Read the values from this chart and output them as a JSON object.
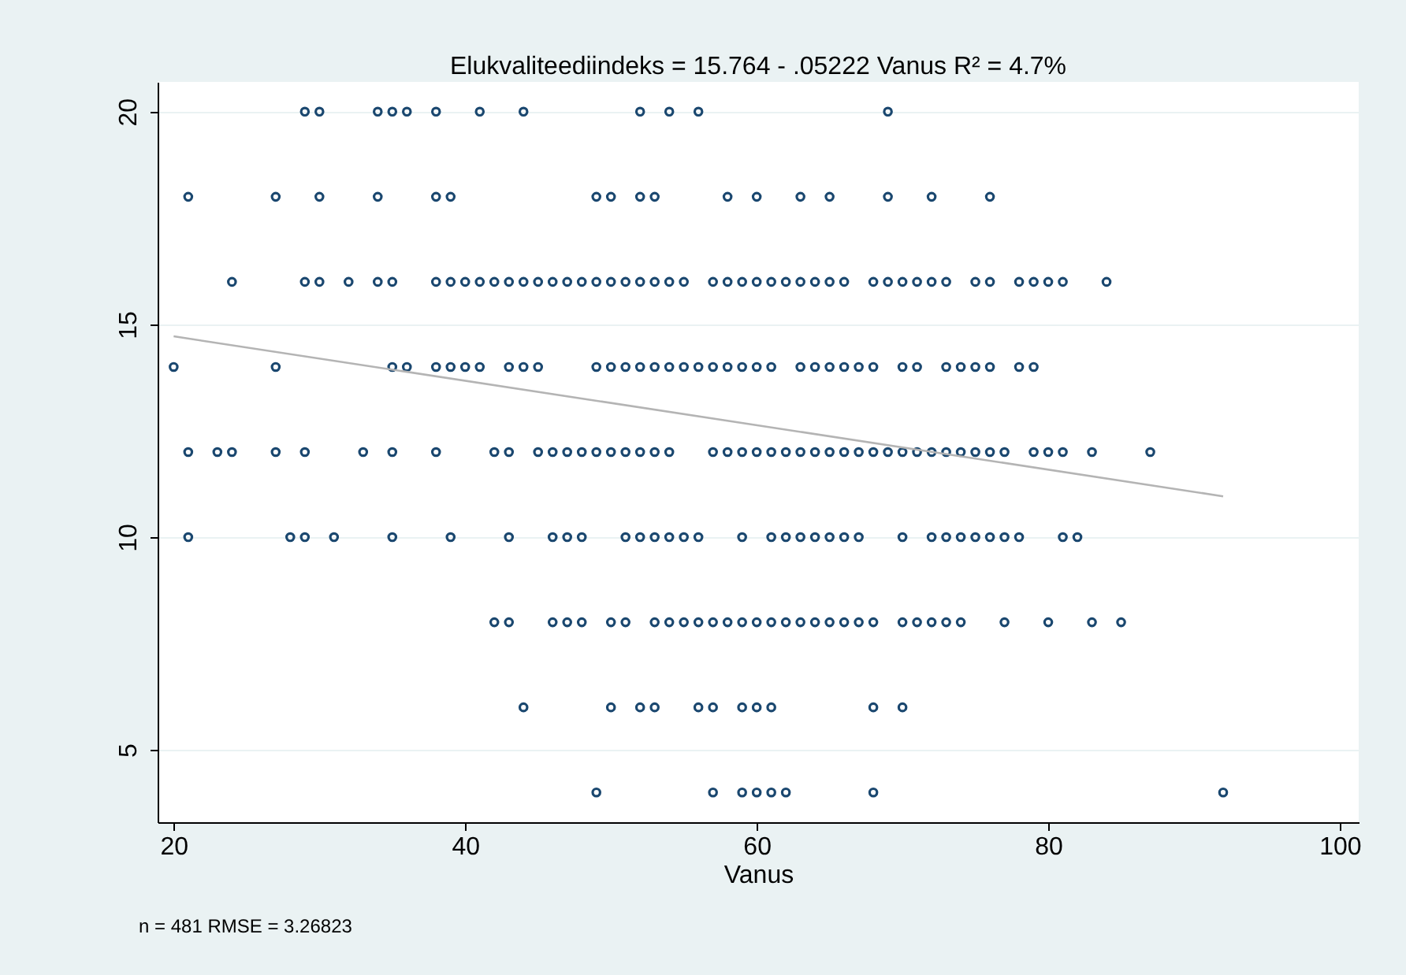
{
  "chart_data": {
    "type": "scatter",
    "title": "Elukvaliteediindeks = 15.764 - .05222 Vanus      R² = 4.7%",
    "xlabel": "Vanus",
    "annotations": [
      "n = 481    RMSE =  3.26823"
    ],
    "xlim": [
      18.9,
      101.3
    ],
    "xticks": [
      20,
      40,
      60,
      80,
      100
    ],
    "ylim": [
      3.3,
      20.7
    ],
    "yticks": [
      5,
      10,
      15,
      20
    ],
    "grid": "y",
    "marker": "circle",
    "series": [
      {
        "color": "#1a476f",
        "x": [
          29,
          30,
          34,
          35,
          36,
          38,
          41,
          44,
          52,
          54,
          56,
          69
        ],
        "values": [
          20,
          20,
          20,
          20,
          20,
          20,
          20,
          20,
          20,
          20,
          20,
          20
        ]
      },
      {
        "color": "#1a476f",
        "x": [
          21,
          27,
          30,
          34,
          38,
          39,
          49,
          50,
          52,
          53,
          58,
          60,
          63,
          65,
          69,
          72,
          76
        ],
        "values": [
          18,
          18,
          18,
          18,
          18,
          18,
          18,
          18,
          18,
          18,
          18,
          18,
          18,
          18,
          18,
          18,
          18
        ]
      },
      {
        "color": "#1a476f",
        "x": [
          24,
          29,
          30,
          32,
          34,
          35,
          38,
          39,
          40,
          41,
          42,
          43,
          44,
          45,
          46,
          47,
          48,
          49,
          50,
          51,
          52,
          53,
          54,
          55,
          57,
          58,
          59,
          60,
          61,
          62,
          63,
          64,
          65,
          66,
          68,
          69,
          70,
          71,
          72,
          73,
          75,
          76,
          78,
          79,
          80,
          81,
          84
        ],
        "values": [
          16,
          16,
          16,
          16,
          16,
          16,
          16,
          16,
          16,
          16,
          16,
          16,
          16,
          16,
          16,
          16,
          16,
          16,
          16,
          16,
          16,
          16,
          16,
          16,
          16,
          16,
          16,
          16,
          16,
          16,
          16,
          16,
          16,
          16,
          16,
          16,
          16,
          16,
          16,
          16,
          16,
          16,
          16,
          16,
          16,
          16,
          16
        ]
      },
      {
        "color": "#1a476f",
        "x": [
          20,
          27,
          35,
          36,
          38,
          39,
          40,
          41,
          43,
          44,
          45,
          49,
          50,
          51,
          52,
          53,
          54,
          55,
          56,
          57,
          58,
          59,
          60,
          61,
          63,
          64,
          65,
          66,
          67,
          68,
          70,
          71,
          73,
          74,
          75,
          76,
          78,
          79
        ],
        "values": [
          14,
          14,
          14,
          14,
          14,
          14,
          14,
          14,
          14,
          14,
          14,
          14,
          14,
          14,
          14,
          14,
          14,
          14,
          14,
          14,
          14,
          14,
          14,
          14,
          14,
          14,
          14,
          14,
          14,
          14,
          14,
          14,
          14,
          14,
          14,
          14,
          14,
          14
        ]
      },
      {
        "color": "#1a476f",
        "x": [
          21,
          23,
          24,
          27,
          29,
          33,
          35,
          38,
          42,
          43,
          45,
          46,
          47,
          48,
          49,
          50,
          51,
          52,
          53,
          54,
          57,
          58,
          59,
          60,
          61,
          62,
          63,
          64,
          65,
          66,
          67,
          68,
          69,
          70,
          71,
          72,
          73,
          74,
          75,
          76,
          77,
          79,
          80,
          81,
          83,
          87
        ],
        "values": [
          12,
          12,
          12,
          12,
          12,
          12,
          12,
          12,
          12,
          12,
          12,
          12,
          12,
          12,
          12,
          12,
          12,
          12,
          12,
          12,
          12,
          12,
          12,
          12,
          12,
          12,
          12,
          12,
          12,
          12,
          12,
          12,
          12,
          12,
          12,
          12,
          12,
          12,
          12,
          12,
          12,
          12,
          12,
          12,
          12,
          12
        ]
      },
      {
        "color": "#1a476f",
        "x": [
          21,
          28,
          29,
          31,
          35,
          39,
          43,
          46,
          47,
          48,
          51,
          52,
          53,
          54,
          55,
          56,
          59,
          61,
          62,
          63,
          64,
          65,
          66,
          67,
          70,
          72,
          73,
          74,
          75,
          76,
          77,
          78,
          81,
          82
        ],
        "values": [
          10,
          10,
          10,
          10,
          10,
          10,
          10,
          10,
          10,
          10,
          10,
          10,
          10,
          10,
          10,
          10,
          10,
          10,
          10,
          10,
          10,
          10,
          10,
          10,
          10,
          10,
          10,
          10,
          10,
          10,
          10,
          10,
          10,
          10
        ]
      },
      {
        "color": "#1a476f",
        "x": [
          42,
          43,
          46,
          47,
          48,
          50,
          51,
          53,
          54,
          55,
          56,
          57,
          58,
          59,
          60,
          61,
          62,
          63,
          64,
          65,
          66,
          67,
          68,
          70,
          71,
          72,
          73,
          74,
          77,
          80,
          83,
          85
        ],
        "values": [
          8,
          8,
          8,
          8,
          8,
          8,
          8,
          8,
          8,
          8,
          8,
          8,
          8,
          8,
          8,
          8,
          8,
          8,
          8,
          8,
          8,
          8,
          8,
          8,
          8,
          8,
          8,
          8,
          8,
          8,
          8,
          8
        ]
      },
      {
        "color": "#1a476f",
        "x": [
          44,
          50,
          52,
          53,
          56,
          57,
          59,
          60,
          61,
          68,
          70
        ],
        "values": [
          6,
          6,
          6,
          6,
          6,
          6,
          6,
          6,
          6,
          6,
          6
        ]
      },
      {
        "color": "#1a476f",
        "x": [
          49,
          57,
          59,
          60,
          61,
          62,
          68,
          92
        ],
        "values": [
          4,
          4,
          4,
          4,
          4,
          4,
          4,
          4
        ]
      },
      {
        "type": "line",
        "color": "#b4b4b4",
        "x": [
          20,
          92
        ],
        "values": [
          14.72,
          10.96
        ],
        "marker": "none",
        "line_style": "solid"
      }
    ]
  }
}
